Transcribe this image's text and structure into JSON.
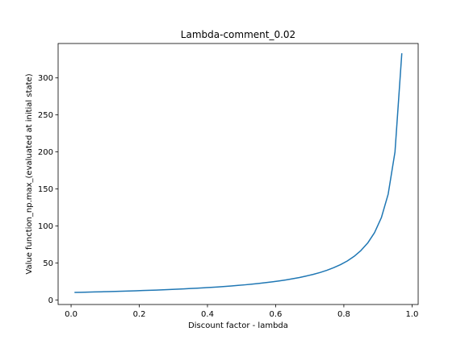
{
  "chart_data": {
    "type": "line",
    "title": "Lambda-comment_0.02",
    "xlabel": "Discount factor - lambda",
    "ylabel": "Value function_np.max_(evaluated at initial state)",
    "xlim": [
      -0.038,
      1.018
    ],
    "ylim": [
      -6.2,
      346.5
    ],
    "x_ticks": [
      0.0,
      0.2,
      0.4,
      0.6,
      0.8,
      1.0
    ],
    "x_tick_labels": [
      "0.0",
      "0.2",
      "0.4",
      "0.6",
      "0.8",
      "1.0"
    ],
    "y_ticks": [
      0,
      50,
      100,
      150,
      200,
      250,
      300
    ],
    "y_tick_labels": [
      "0",
      "50",
      "100",
      "150",
      "200",
      "250",
      "300"
    ],
    "grid": false,
    "line_color": "#1f77b4",
    "series": [
      {
        "x": [
          0.01,
          0.03,
          0.05,
          0.07,
          0.09,
          0.11,
          0.13,
          0.15,
          0.17,
          0.19,
          0.21,
          0.23,
          0.25,
          0.27,
          0.29,
          0.31,
          0.33,
          0.35,
          0.37,
          0.39,
          0.41,
          0.43,
          0.45,
          0.47,
          0.49,
          0.51,
          0.53,
          0.55,
          0.57,
          0.59,
          0.61,
          0.63,
          0.65,
          0.67,
          0.69,
          0.71,
          0.73,
          0.75,
          0.77,
          0.79,
          0.81,
          0.83,
          0.85,
          0.87,
          0.89,
          0.91,
          0.93,
          0.95,
          0.97
        ],
        "y": [
          10.1,
          10.3,
          10.5,
          10.8,
          11.0,
          11.2,
          11.5,
          11.8,
          12.0,
          12.3,
          12.7,
          13.0,
          13.3,
          13.7,
          14.1,
          14.5,
          14.9,
          15.4,
          15.9,
          16.4,
          16.9,
          17.5,
          18.2,
          18.9,
          19.6,
          20.4,
          21.3,
          22.2,
          23.3,
          24.4,
          25.6,
          27.0,
          28.6,
          30.3,
          32.3,
          34.5,
          37.0,
          40.0,
          43.5,
          47.6,
          52.6,
          58.8,
          66.7,
          76.9,
          90.9,
          111.1,
          142.9,
          200.0,
          333.3
        ]
      }
    ]
  }
}
